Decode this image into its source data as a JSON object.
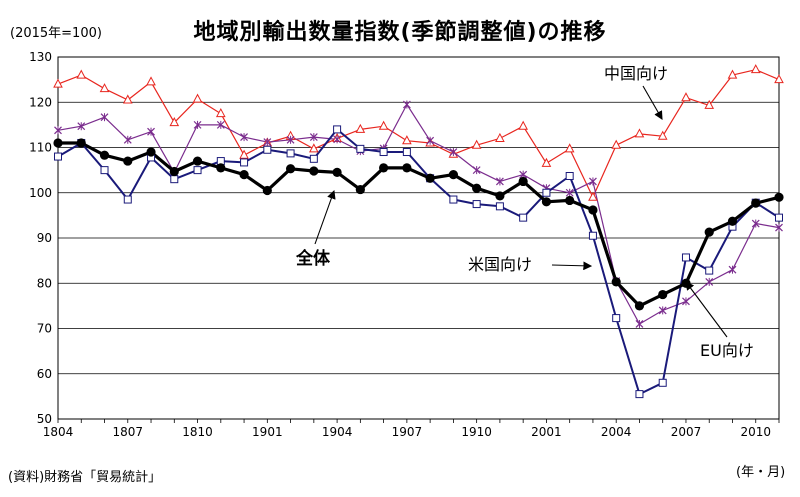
{
  "header": {
    "title": "地域別輸出数量指数(季節調整値)の推移",
    "unit": "(2015年=100)"
  },
  "footer": {
    "source": "(資料)財務省「貿易統計」",
    "x_unit": "(年・月)"
  },
  "colors": {
    "total": "#000000",
    "us": "#1a1a7a",
    "eu": "#7b2d8e",
    "china": "#e8261f",
    "grid": "#000000"
  },
  "chart_data": {
    "type": "line",
    "title": "地域別輸出数量指数(季節調整値)の推移",
    "ylabel": "(2015年=100)",
    "xlabel": "(年・月)",
    "ylim": [
      50,
      130
    ],
    "yticks": [
      "50",
      "60",
      "70",
      "80",
      "90",
      "100",
      "110",
      "120",
      "130"
    ],
    "xticks": [
      "1804",
      "1807",
      "1810",
      "1901",
      "1904",
      "1907",
      "1910",
      "2001",
      "2004",
      "2007",
      "2010"
    ],
    "grid": true,
    "x": [
      "1804",
      "1805",
      "1806",
      "1807",
      "1808",
      "1809",
      "1810",
      "1811",
      "1812",
      "1901",
      "1902",
      "1903",
      "1904",
      "1905",
      "1906",
      "1907",
      "1908",
      "1909",
      "1910",
      "1911",
      "1912",
      "2001",
      "2002",
      "2003",
      "2004",
      "2005",
      "2006",
      "2007",
      "2008",
      "2009",
      "2010",
      "2011"
    ],
    "series": [
      {
        "name": "全体",
        "key": "total",
        "values": [
          111,
          111,
          108.3,
          107,
          109,
          104.7,
          107,
          105.5,
          104,
          100.5,
          105.3,
          104.8,
          104.5,
          100.7,
          105.5,
          105.5,
          103.2,
          104,
          101,
          99.3,
          102.5,
          98,
          98.3,
          96.2,
          80.3,
          75,
          77.5,
          80,
          91.3,
          93.7,
          97.7,
          99
        ]
      },
      {
        "name": "米国向け",
        "key": "us",
        "values": [
          108,
          111,
          105,
          98.5,
          107.8,
          103,
          105,
          107,
          106.7,
          109.5,
          108.7,
          107.5,
          114,
          109.7,
          109,
          109,
          103.2,
          98.5,
          97.5,
          97,
          94.5,
          100,
          103.7,
          90.5,
          72.3,
          55.5,
          58,
          85.7,
          82.8,
          92.5,
          97.8,
          94.5
        ]
      },
      {
        "name": "EU向け",
        "key": "eu",
        "values": [
          113.8,
          114.7,
          116.7,
          111.7,
          113.5,
          104.5,
          115,
          115,
          112.3,
          111.2,
          111.7,
          112.3,
          111.8,
          109.2,
          109.8,
          119.5,
          111.5,
          109,
          105,
          102.5,
          104,
          101,
          100,
          102.5,
          80.5,
          71,
          74,
          76,
          80.3,
          83,
          93.2,
          92.3
        ]
      },
      {
        "name": "中国向け",
        "key": "china",
        "values": [
          124,
          126,
          123,
          120.5,
          124.5,
          115.5,
          120.7,
          117.5,
          108.3,
          111,
          112.5,
          109.7,
          112,
          114,
          114.7,
          111.5,
          111,
          108.5,
          110.5,
          112,
          114.7,
          106.5,
          109.7,
          99,
          110.5,
          113,
          112.5,
          121,
          119.3,
          126,
          127.2,
          125
        ]
      }
    ],
    "annotations": [
      {
        "text": "中国向け"
      },
      {
        "text": "全体"
      },
      {
        "text": "米国向け"
      },
      {
        "text": "EU向け"
      }
    ]
  }
}
